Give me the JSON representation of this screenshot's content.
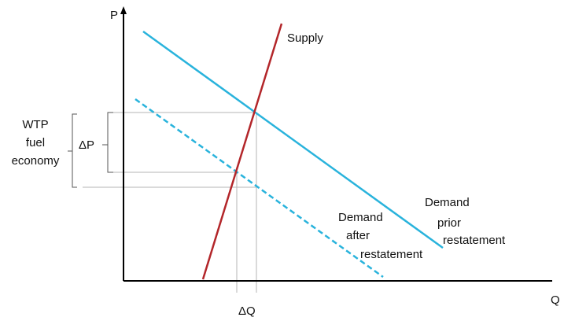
{
  "axes": {
    "y_label": "P",
    "x_label": "Q"
  },
  "curves": {
    "supply": "Supply",
    "demand_prior": [
      "Demand",
      "prior",
      "restatement"
    ],
    "demand_after": [
      "Demand",
      "after",
      "restatement"
    ]
  },
  "annotations": {
    "delta_p": "ΔP",
    "delta_q": "ΔQ",
    "wtp": [
      "WTP",
      "fuel",
      "economy"
    ]
  }
}
